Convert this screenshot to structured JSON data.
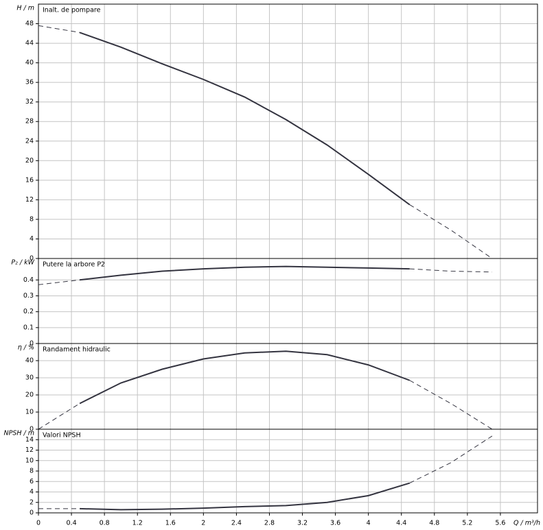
{
  "chart_data": [
    {
      "type": "line",
      "title": "Inalt. de pompare",
      "y_label": "H / m",
      "x": [
        0,
        0.5,
        1.0,
        1.5,
        2.0,
        2.5,
        3.0,
        3.5,
        4.0,
        4.5,
        5.0,
        5.5
      ],
      "values": [
        47.6,
        46.2,
        43.2,
        39.8,
        36.6,
        33.0,
        28.4,
        23.2,
        17.2,
        11.0,
        5.8,
        0
      ],
      "solid_range": [
        0.5,
        4.5
      ],
      "color": "#33333f",
      "xlim": [
        0,
        6.05
      ],
      "ylim": [
        0,
        52
      ],
      "yticks": [
        0,
        4,
        8,
        12,
        16,
        20,
        24,
        28,
        32,
        36,
        40,
        44,
        48
      ],
      "grid": true
    },
    {
      "type": "line",
      "title": "Putere la arbore P2",
      "y_label": "P₂ / kW",
      "x": [
        0,
        0.5,
        1.0,
        1.5,
        2.0,
        2.5,
        3.0,
        3.5,
        4.0,
        4.5,
        5.0,
        5.5
      ],
      "values": [
        0.37,
        0.4,
        0.43,
        0.455,
        0.47,
        0.48,
        0.485,
        0.48,
        0.475,
        0.47,
        0.455,
        0.45
      ],
      "solid_range": [
        0.5,
        4.5
      ],
      "color": "#33333f",
      "xlim": [
        0,
        6.05
      ],
      "ylim": [
        0,
        0.535
      ],
      "yticks": [
        0,
        0.1,
        0.2,
        0.3,
        0.4
      ],
      "grid": true
    },
    {
      "type": "line",
      "title": "Randament hidraulic",
      "y_label": "η / %",
      "x": [
        0,
        0.5,
        1.0,
        1.5,
        2.0,
        2.5,
        3.0,
        3.5,
        4.0,
        4.5,
        5.0,
        5.5
      ],
      "values": [
        0,
        15,
        27,
        35,
        41,
        44.5,
        45.5,
        43.5,
        37.5,
        28.5,
        15,
        0
      ],
      "solid_range": [
        0.5,
        4.5
      ],
      "color": "#33333f",
      "xlim": [
        0,
        6.05
      ],
      "ylim": [
        0,
        50
      ],
      "yticks": [
        0,
        10,
        20,
        30,
        40
      ],
      "grid": true
    },
    {
      "type": "line",
      "title": "Valori NPSH",
      "y_label": "NPSH / m",
      "x_label": "Q / m³/h",
      "x": [
        0,
        0.5,
        1.0,
        1.5,
        2.0,
        2.5,
        3.0,
        3.5,
        4.0,
        4.5,
        5.0,
        5.5
      ],
      "values": [
        0.8,
        0.8,
        0.6,
        0.7,
        0.9,
        1.2,
        1.4,
        2.0,
        3.3,
        5.7,
        9.6,
        14.7
      ],
      "solid_range": [
        0.5,
        4.5
      ],
      "color": "#33333f",
      "xlim": [
        0,
        6.05
      ],
      "ylim": [
        0,
        16
      ],
      "yticks": [
        0,
        2,
        4,
        6,
        8,
        10,
        12,
        14
      ],
      "xticks": [
        0,
        0.4,
        0.8,
        1.2,
        1.6,
        2,
        2.4,
        2.8,
        3.2,
        3.6,
        4,
        4.4,
        4.8,
        5.2,
        5.6
      ],
      "grid": true
    }
  ]
}
